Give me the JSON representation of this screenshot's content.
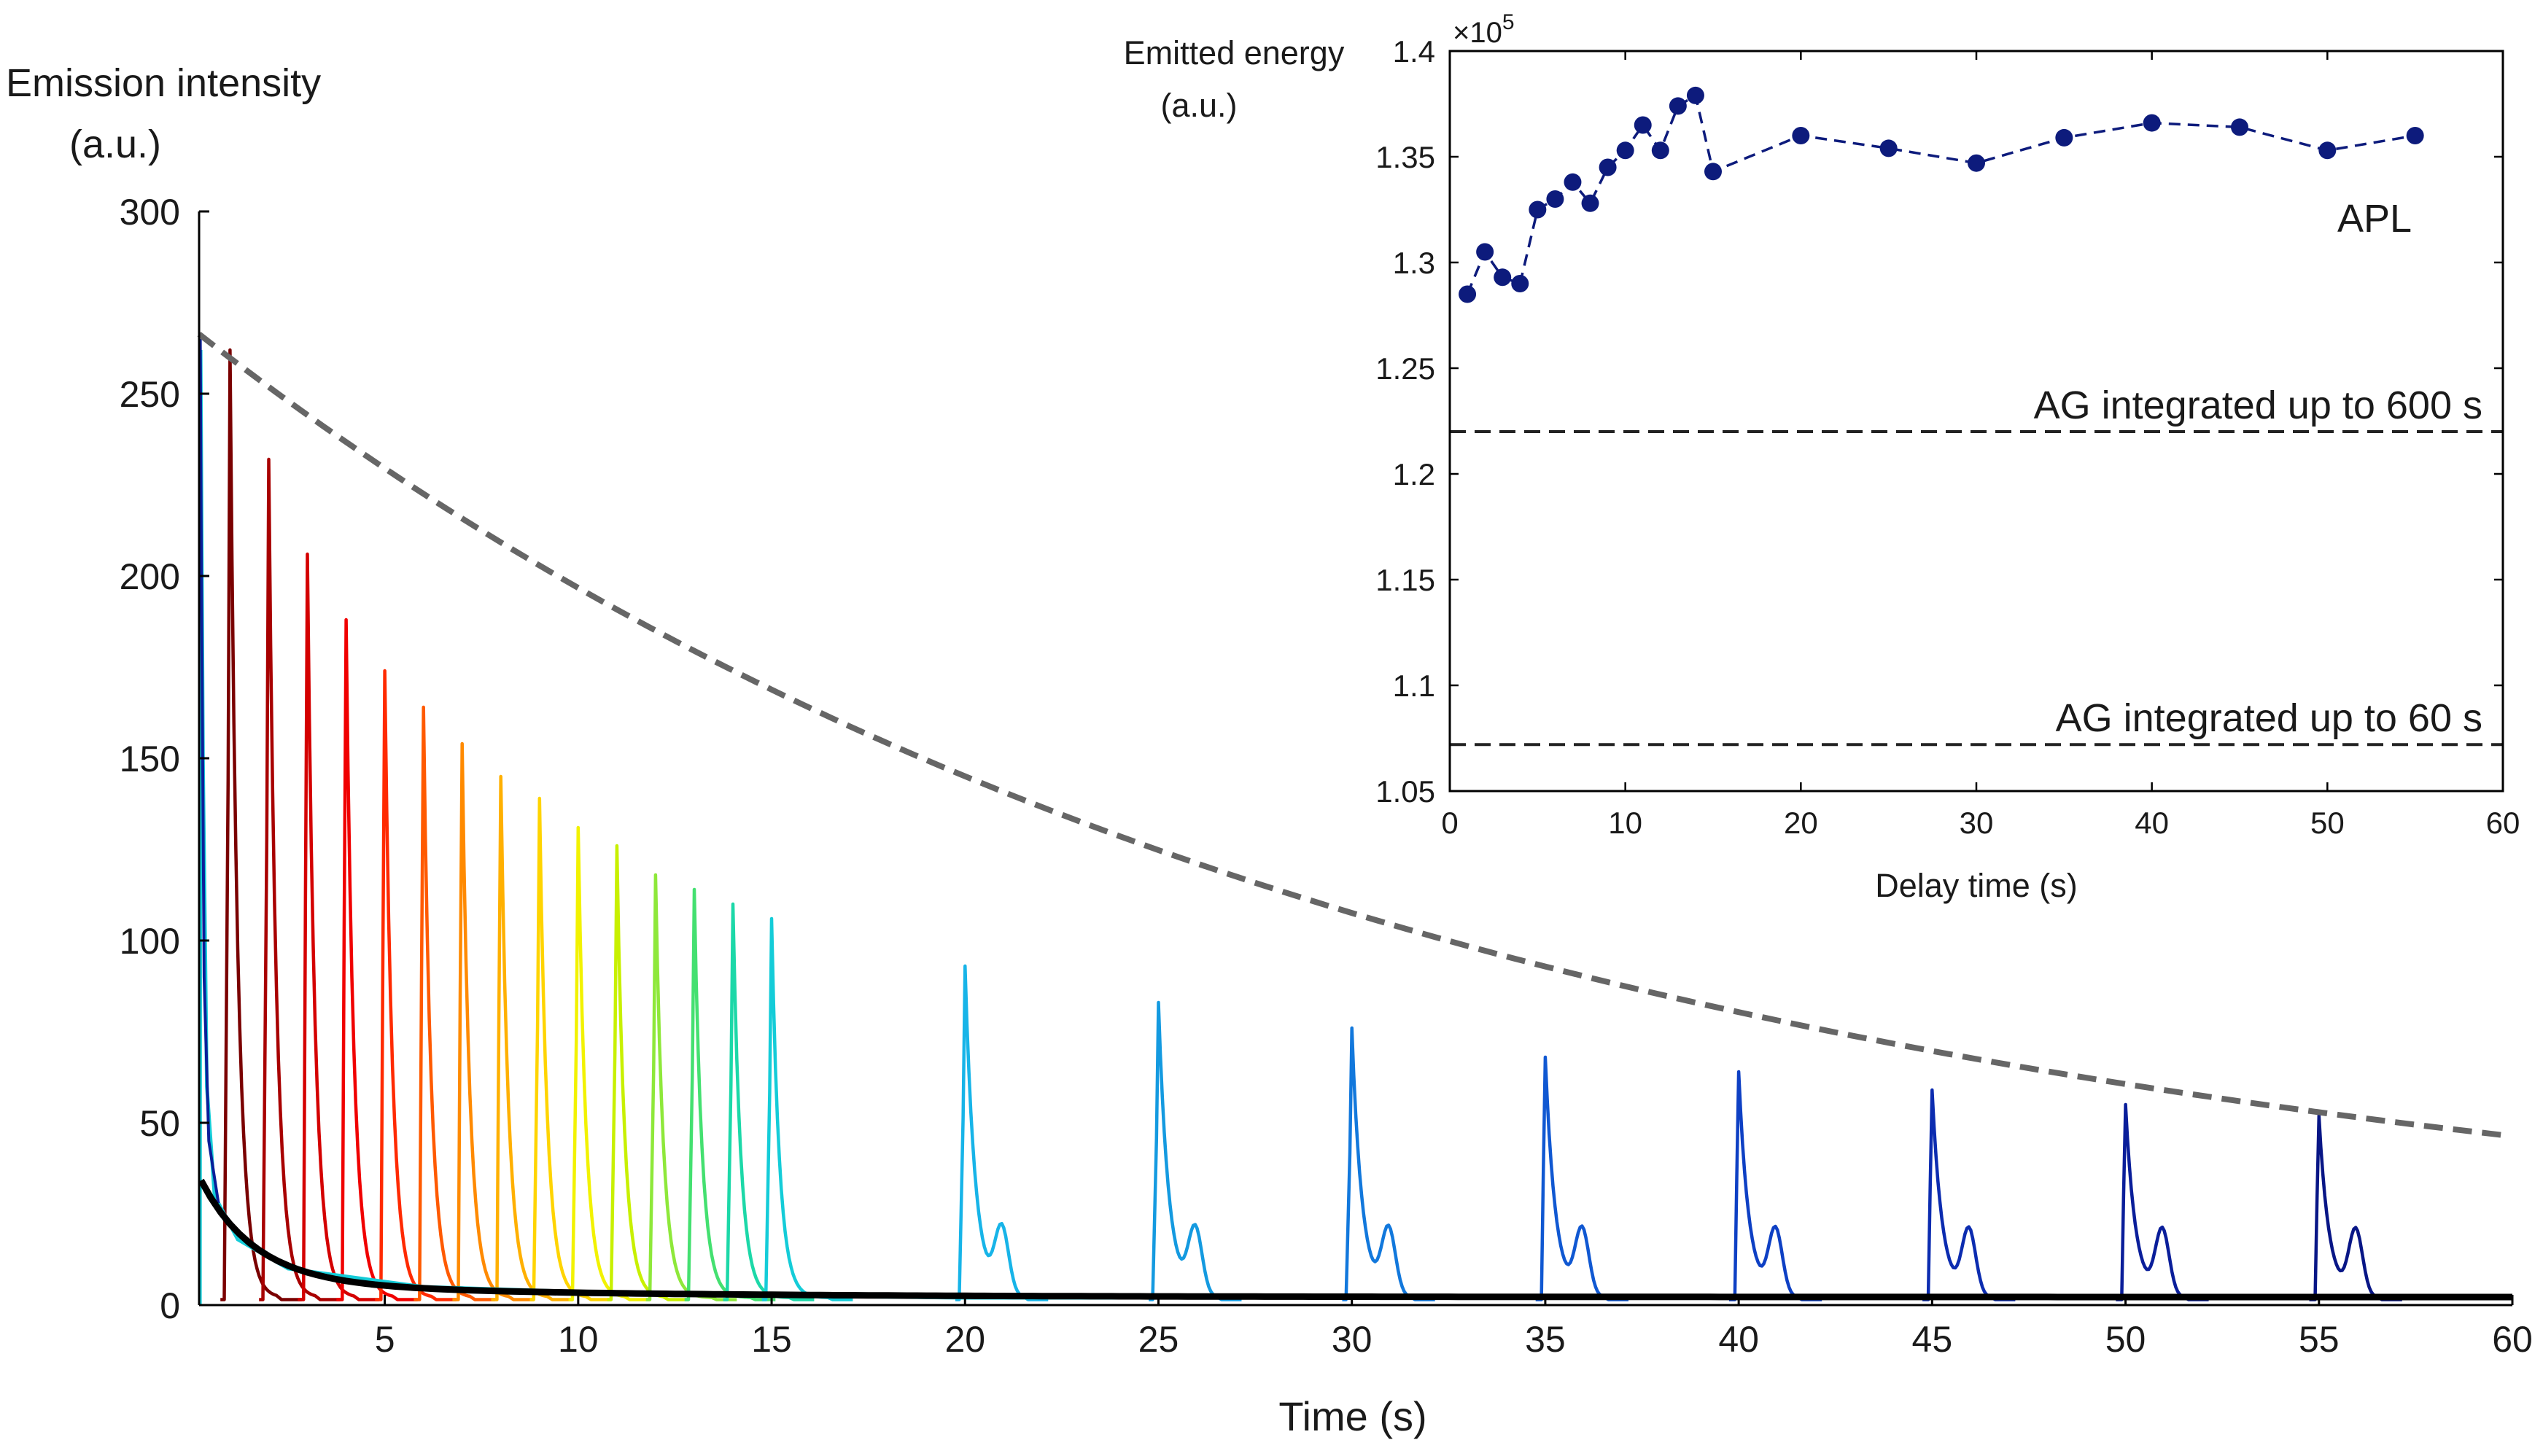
{
  "chart_data": [
    {
      "type": "line",
      "ylabel_line1": "Emission intensity",
      "ylabel_line2": "(a.u.)",
      "xlabel": "Time (s)",
      "xlim": [
        0.2,
        60
      ],
      "ylim": [
        0,
        300
      ],
      "xticks": [
        5,
        10,
        15,
        20,
        25,
        30,
        35,
        40,
        45,
        50,
        55,
        60
      ],
      "yticks": [
        0,
        50,
        100,
        150,
        200,
        250,
        300
      ],
      "pulse_delays": [
        1,
        2,
        3,
        4,
        5,
        6,
        7,
        8,
        9,
        10,
        11,
        12,
        13,
        14,
        15,
        20,
        25,
        30,
        35,
        40,
        45,
        50,
        55
      ],
      "pulse_peaks": [
        262,
        232,
        206,
        188,
        174,
        164,
        154,
        145,
        139,
        131,
        126,
        118,
        114,
        110,
        106,
        93,
        83,
        76,
        68,
        64,
        59,
        55,
        52
      ],
      "pulse_colors": [
        "#7a0000",
        "#a80000",
        "#d40000",
        "#f00000",
        "#ff2a00",
        "#ff5a00",
        "#ff8a00",
        "#ffb000",
        "#ffd400",
        "#f2f200",
        "#c8f000",
        "#8ee83a",
        "#44e070",
        "#1cd8a8",
        "#14ccd8",
        "#17b4e8",
        "#149ae0",
        "#1278dc",
        "#1058d2",
        "#0e40c4",
        "#0c2cb0",
        "#0a1e9a",
        "#081686"
      ],
      "envelope": {
        "x": [
          0.2,
          60
        ],
        "a0": 268,
        "a1": 45,
        "decay": 0.0321,
        "c": 36.5,
        "color": "#666666"
      },
      "afterglow_color": "#000000"
    },
    {
      "type": "line",
      "ylabel_line1": "Emitted energy",
      "ylabel_line2": "(a.u.)",
      "xlabel": "Delay time (s)",
      "exponent_label": "×10",
      "exponent_power": "5",
      "xlim": [
        0,
        60
      ],
      "ylim": [
        1.05,
        1.4
      ],
      "xticks": [
        0,
        10,
        20,
        30,
        40,
        50,
        60
      ],
      "yticks": [
        1.05,
        1.1,
        1.15,
        1.2,
        1.25,
        1.3,
        1.35,
        1.4
      ],
      "series": [
        {
          "name": "APL",
          "color": "#0d1b7c",
          "x": [
            1,
            2,
            3,
            4,
            5,
            6,
            7,
            8,
            9,
            10,
            11,
            12,
            13,
            14,
            15,
            20,
            25,
            30,
            35,
            40,
            45,
            50,
            55
          ],
          "y": [
            1.285,
            1.305,
            1.293,
            1.29,
            1.325,
            1.33,
            1.338,
            1.328,
            1.345,
            1.353,
            1.365,
            1.353,
            1.374,
            1.379,
            1.343,
            1.36,
            1.354,
            1.347,
            1.359,
            1.366,
            1.364,
            1.353,
            1.36
          ]
        }
      ],
      "reference_lines": [
        {
          "label": "AG integrated up to 600 s",
          "y": 1.22
        },
        {
          "label": "AG integrated up to 60 s",
          "y": 1.072
        }
      ]
    }
  ]
}
